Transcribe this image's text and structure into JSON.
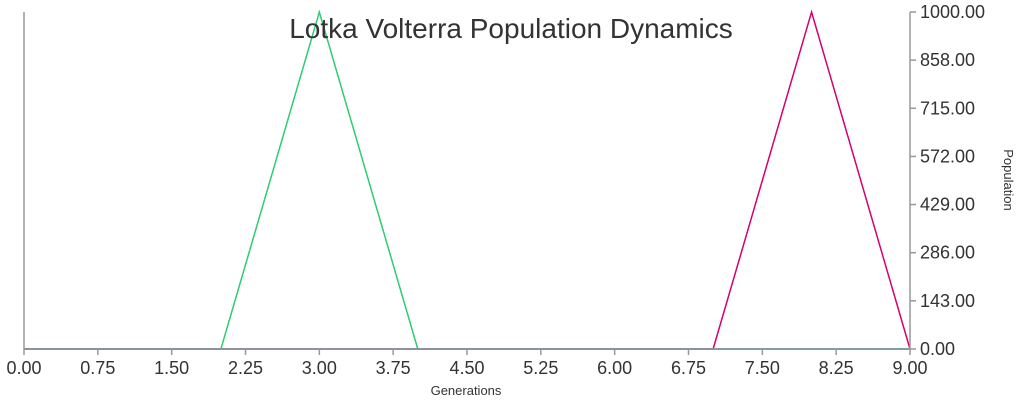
{
  "chart_data": {
    "type": "line",
    "title": "Lotka Volterra Population Dynamics",
    "xlabel": "Generations",
    "ylabel": "Population",
    "x": [
      0,
      1,
      2,
      3,
      4,
      5,
      6,
      7,
      8,
      9
    ],
    "xlim": [
      0,
      9
    ],
    "ylim": [
      0,
      1000
    ],
    "x_ticks": [
      "0.00",
      "0.75",
      "1.50",
      "2.25",
      "3.00",
      "3.75",
      "4.50",
      "5.25",
      "6.00",
      "6.75",
      "7.50",
      "8.25",
      "9.00"
    ],
    "y_ticks": [
      "0.00",
      "143.00",
      "286.00",
      "429.00",
      "572.00",
      "715.00",
      "858.00",
      "1000.00"
    ],
    "y_axis_side": "right",
    "grid": false,
    "legend": "none",
    "series": [
      {
        "color": "#7b5ea7",
        "values": [
          0,
          0,
          0,
          0,
          0,
          0,
          0,
          0,
          0,
          0
        ]
      },
      {
        "color": "#2ecc71",
        "values": [
          0,
          0,
          0,
          1000,
          0,
          0,
          0,
          0,
          0,
          0
        ]
      },
      {
        "color": "#d6006f",
        "values": [
          0,
          0,
          0,
          0,
          0,
          0,
          0,
          0,
          1000,
          0
        ]
      },
      {
        "color": "#17a2b8",
        "values": [
          0,
          0,
          0,
          0,
          0,
          0,
          0,
          0,
          0,
          0
        ]
      }
    ]
  }
}
